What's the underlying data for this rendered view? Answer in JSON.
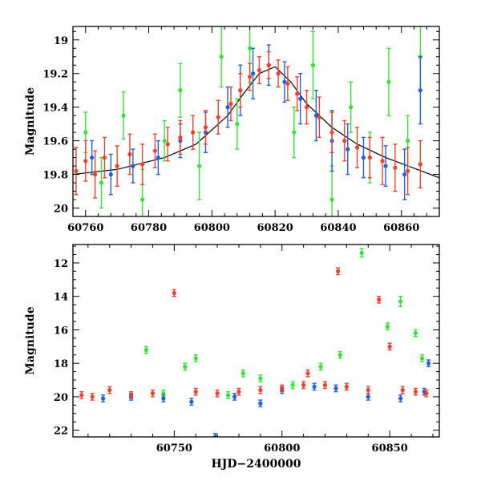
{
  "colors": {
    "green": "#33e533",
    "blue": "#1f5fe6",
    "red": "#f2402a",
    "model": "#000000"
  },
  "chart_data": [
    {
      "type": "scatter",
      "panel": "top",
      "xlabel": "",
      "ylabel": "Magnitude",
      "xlim": [
        60756,
        60872
      ],
      "ylim": [
        20.05,
        18.92
      ],
      "y_inverted": true,
      "x_ticks": [
        60760,
        60780,
        60800,
        60820,
        60840,
        60860
      ],
      "y_ticks": [
        19,
        19.2,
        19.4,
        19.6,
        19.8,
        20
      ],
      "tick_labels_x": [
        "60760",
        "60780",
        "60800",
        "60820",
        "60840",
        "60860"
      ],
      "tick_labels_y": [
        "19",
        "19.2",
        "19.4",
        "19.6",
        "19.8",
        "20"
      ],
      "grid": false,
      "model_curve": {
        "x": [
          60756,
          60770,
          60785,
          60795,
          60805,
          60810,
          60815,
          60820,
          60825,
          60830,
          60838,
          60846,
          60855,
          60865,
          60872
        ],
        "y": [
          19.8,
          19.77,
          19.7,
          19.62,
          19.45,
          19.32,
          19.2,
          19.16,
          19.25,
          19.38,
          19.52,
          19.62,
          19.7,
          19.77,
          19.82
        ]
      },
      "series": [
        {
          "color": "#33e533",
          "x": [
            60760,
            60765,
            60772,
            60778,
            60785,
            60790,
            60796,
            60803,
            60808,
            60812,
            60826,
            60832,
            60838,
            60844,
            60850,
            60856,
            60862,
            60866
          ],
          "y": [
            19.55,
            19.85,
            19.45,
            19.95,
            19.6,
            19.3,
            19.75,
            19.1,
            19.5,
            19.05,
            19.55,
            19.15,
            19.95,
            19.4,
            19.7,
            19.25,
            19.6,
            19.1
          ],
          "err": [
            0.12,
            0.15,
            0.14,
            0.18,
            0.12,
            0.16,
            0.2,
            0.18,
            0.15,
            0.2,
            0.15,
            0.2,
            0.2,
            0.15,
            0.15,
            0.2,
            0.15,
            0.2
          ]
        },
        {
          "color": "#1f5fe6",
          "x": [
            60762,
            60768,
            60775,
            60783,
            60790,
            60798,
            60805,
            60809,
            60813,
            60818,
            60823,
            60828,
            60833,
            60838,
            60843,
            60848,
            60855,
            60861,
            60866
          ],
          "y": [
            19.7,
            19.8,
            19.75,
            19.7,
            19.6,
            19.55,
            19.4,
            19.3,
            19.2,
            19.15,
            19.25,
            19.35,
            19.45,
            19.6,
            19.65,
            19.7,
            19.75,
            19.8,
            19.3
          ],
          "err": [
            0.1,
            0.12,
            0.1,
            0.1,
            0.1,
            0.12,
            0.12,
            0.15,
            0.15,
            0.12,
            0.12,
            0.15,
            0.15,
            0.18,
            0.15,
            0.12,
            0.12,
            0.15,
            0.2
          ]
        },
        {
          "color": "#f2402a",
          "x": [
            60757,
            60760,
            60763,
            60766,
            60770,
            60774,
            60778,
            60782,
            60786,
            60790,
            60794,
            60798,
            60802,
            60806,
            60809,
            60812,
            60815,
            60818,
            60821,
            60824,
            60827,
            60830,
            60834,
            60838,
            60842,
            60846,
            60850,
            60854,
            60858,
            60862,
            60866
          ],
          "y": [
            19.78,
            19.72,
            19.8,
            19.7,
            19.75,
            19.68,
            19.74,
            19.66,
            19.62,
            19.58,
            19.55,
            19.52,
            19.46,
            19.38,
            19.3,
            19.22,
            19.18,
            19.15,
            19.2,
            19.26,
            19.32,
            19.4,
            19.46,
            19.55,
            19.6,
            19.64,
            19.7,
            19.72,
            19.76,
            19.78,
            19.74
          ],
          "err": [
            0.14,
            0.12,
            0.14,
            0.12,
            0.12,
            0.12,
            0.12,
            0.1,
            0.1,
            0.1,
            0.1,
            0.1,
            0.1,
            0.1,
            0.1,
            0.08,
            0.08,
            0.08,
            0.08,
            0.1,
            0.1,
            0.1,
            0.12,
            0.12,
            0.12,
            0.12,
            0.12,
            0.14,
            0.14,
            0.14,
            0.14
          ]
        }
      ]
    },
    {
      "type": "scatter",
      "panel": "bottom",
      "xlabel": "HJD−2400000",
      "ylabel": "Magnitude",
      "xlim": [
        60703,
        60873
      ],
      "ylim": [
        22.4,
        10.9
      ],
      "y_inverted": true,
      "x_ticks": [
        60750,
        60800,
        60850
      ],
      "y_ticks": [
        12,
        14,
        16,
        18,
        20,
        22
      ],
      "tick_labels_x": [
        "60750",
        "60800",
        "60850"
      ],
      "tick_labels_y": [
        "12",
        "14",
        "16",
        "18",
        "20",
        "22"
      ],
      "grid": false,
      "series": [
        {
          "color": "#33e533",
          "x": [
            60737,
            60745,
            60755,
            60760,
            60775,
            60782,
            60790,
            60805,
            60818,
            60827,
            60837,
            60849,
            60855,
            60862,
            60865
          ],
          "y": [
            17.2,
            19.8,
            18.2,
            17.7,
            19.9,
            18.6,
            18.9,
            19.3,
            18.2,
            17.5,
            11.4,
            15.8,
            14.3,
            16.2,
            17.7
          ],
          "err": [
            0.2,
            0.2,
            0.2,
            0.2,
            0.2,
            0.2,
            0.2,
            0.2,
            0.2,
            0.2,
            0.25,
            0.2,
            0.3,
            0.2,
            0.2
          ]
        },
        {
          "color": "#1f5fe6",
          "x": [
            60717,
            60730,
            60745,
            60758,
            60769,
            60778,
            60790,
            60800,
            60815,
            60825,
            60840,
            60855,
            60866,
            60868
          ],
          "y": [
            20.1,
            20.0,
            20.1,
            20.3,
            22.4,
            20.0,
            20.4,
            19.6,
            19.4,
            19.5,
            20.0,
            20.1,
            19.7,
            18.0
          ],
          "err": [
            0.2,
            0.2,
            0.2,
            0.2,
            0.2,
            0.2,
            0.2,
            0.2,
            0.2,
            0.2,
            0.2,
            0.2,
            0.2,
            0.2
          ]
        },
        {
          "color": "#f2402a",
          "x": [
            60707,
            60712,
            60720,
            60730,
            60740,
            60750,
            60760,
            60770,
            60780,
            60790,
            60800,
            60810,
            60812,
            60820,
            60826,
            60830,
            60840,
            60845,
            60850,
            60856,
            60862,
            60867
          ],
          "y": [
            19.9,
            20.0,
            19.6,
            19.9,
            19.8,
            13.8,
            19.7,
            19.8,
            19.7,
            19.6,
            19.5,
            19.3,
            18.6,
            19.3,
            12.5,
            19.4,
            19.6,
            14.2,
            17.0,
            19.6,
            19.7,
            19.8
          ],
          "err": [
            0.2,
            0.2,
            0.2,
            0.2,
            0.2,
            0.2,
            0.2,
            0.2,
            0.2,
            0.2,
            0.2,
            0.2,
            0.2,
            0.2,
            0.2,
            0.2,
            0.2,
            0.2,
            0.2,
            0.2,
            0.2,
            0.2
          ]
        }
      ]
    }
  ]
}
